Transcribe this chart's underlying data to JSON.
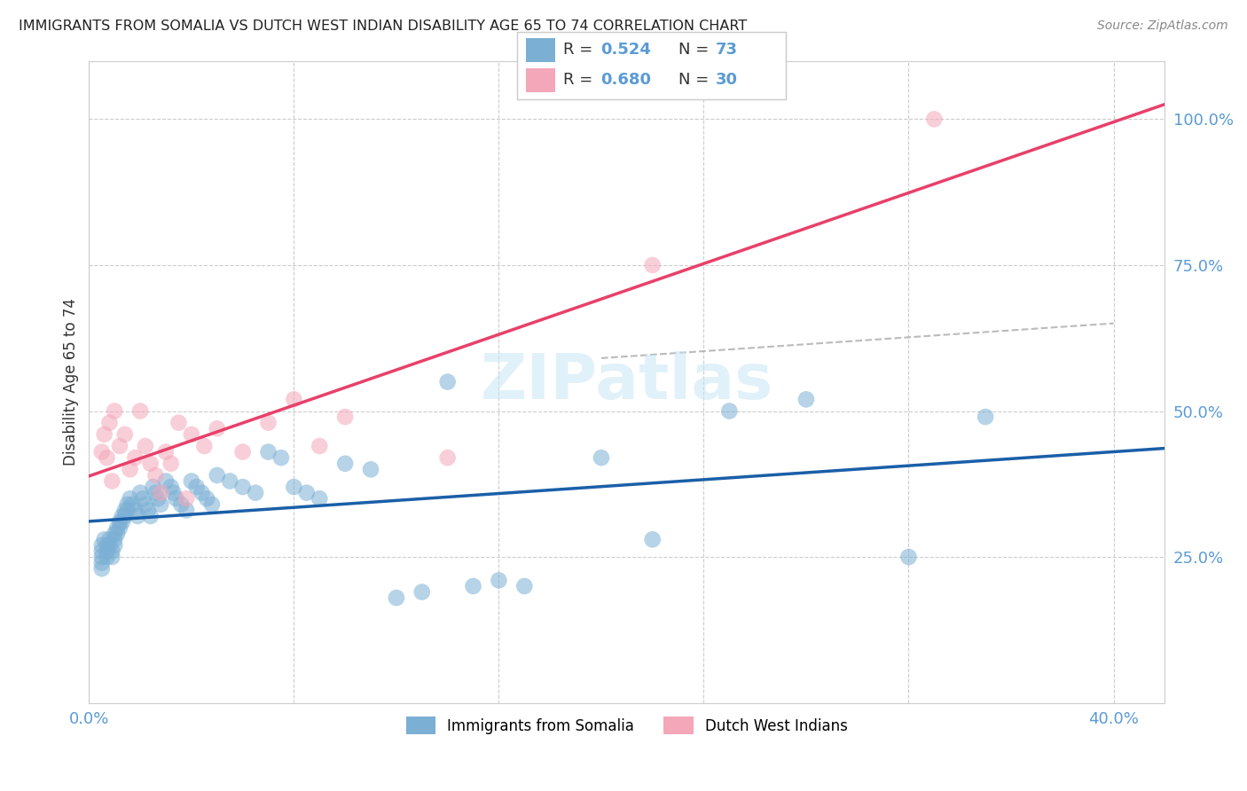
{
  "title": "IMMIGRANTS FROM SOMALIA VS DUTCH WEST INDIAN DISABILITY AGE 65 TO 74 CORRELATION CHART",
  "source": "Source: ZipAtlas.com",
  "ylabel": "Disability Age 65 to 74",
  "xlim": [
    0.0,
    0.42
  ],
  "ylim": [
    0.0,
    1.1
  ],
  "somalia_color": "#7BAFD4",
  "dutch_color": "#F4A7B9",
  "somalia_line_color": "#1A5FA8",
  "dutch_line_color": "#E8406A",
  "watermark": "ZIPatlas",
  "background_color": "#FFFFFF",
  "grid_color": "#CCCCCC",
  "somalia_x": [
    0.005,
    0.005,
    0.005,
    0.005,
    0.005,
    0.006,
    0.007,
    0.007,
    0.007,
    0.008,
    0.008,
    0.009,
    0.009,
    0.01,
    0.01,
    0.01,
    0.011,
    0.011,
    0.012,
    0.012,
    0.013,
    0.013,
    0.014,
    0.014,
    0.015,
    0.015,
    0.016,
    0.017,
    0.018,
    0.019,
    0.02,
    0.021,
    0.022,
    0.023,
    0.024,
    0.025,
    0.026,
    0.027,
    0.028,
    0.03,
    0.032,
    0.033,
    0.034,
    0.036,
    0.038,
    0.04,
    0.042,
    0.044,
    0.046,
    0.048,
    0.05,
    0.055,
    0.06,
    0.065,
    0.07,
    0.075,
    0.08,
    0.085,
    0.09,
    0.1,
    0.11,
    0.12,
    0.13,
    0.14,
    0.15,
    0.16,
    0.17,
    0.2,
    0.22,
    0.25,
    0.28,
    0.32,
    0.35
  ],
  "somalia_y": [
    0.27,
    0.26,
    0.25,
    0.24,
    0.23,
    0.28,
    0.27,
    0.26,
    0.25,
    0.28,
    0.27,
    0.26,
    0.25,
    0.29,
    0.28,
    0.27,
    0.3,
    0.29,
    0.31,
    0.3,
    0.32,
    0.31,
    0.33,
    0.32,
    0.34,
    0.33,
    0.35,
    0.34,
    0.33,
    0.32,
    0.36,
    0.35,
    0.34,
    0.33,
    0.32,
    0.37,
    0.36,
    0.35,
    0.34,
    0.38,
    0.37,
    0.36,
    0.35,
    0.34,
    0.33,
    0.38,
    0.37,
    0.36,
    0.35,
    0.34,
    0.39,
    0.38,
    0.37,
    0.36,
    0.43,
    0.42,
    0.37,
    0.36,
    0.35,
    0.41,
    0.4,
    0.18,
    0.19,
    0.55,
    0.2,
    0.21,
    0.2,
    0.42,
    0.28,
    0.5,
    0.52,
    0.25,
    0.49
  ],
  "dutch_x": [
    0.005,
    0.006,
    0.007,
    0.008,
    0.009,
    0.01,
    0.012,
    0.014,
    0.016,
    0.018,
    0.02,
    0.022,
    0.024,
    0.026,
    0.028,
    0.03,
    0.032,
    0.035,
    0.038,
    0.04,
    0.045,
    0.05,
    0.06,
    0.07,
    0.08,
    0.09,
    0.1,
    0.14,
    0.22,
    0.33
  ],
  "dutch_y": [
    0.43,
    0.46,
    0.42,
    0.48,
    0.38,
    0.5,
    0.44,
    0.46,
    0.4,
    0.42,
    0.5,
    0.44,
    0.41,
    0.39,
    0.36,
    0.43,
    0.41,
    0.48,
    0.35,
    0.46,
    0.44,
    0.47,
    0.43,
    0.48,
    0.52,
    0.44,
    0.49,
    0.42,
    0.75,
    1.0
  ]
}
